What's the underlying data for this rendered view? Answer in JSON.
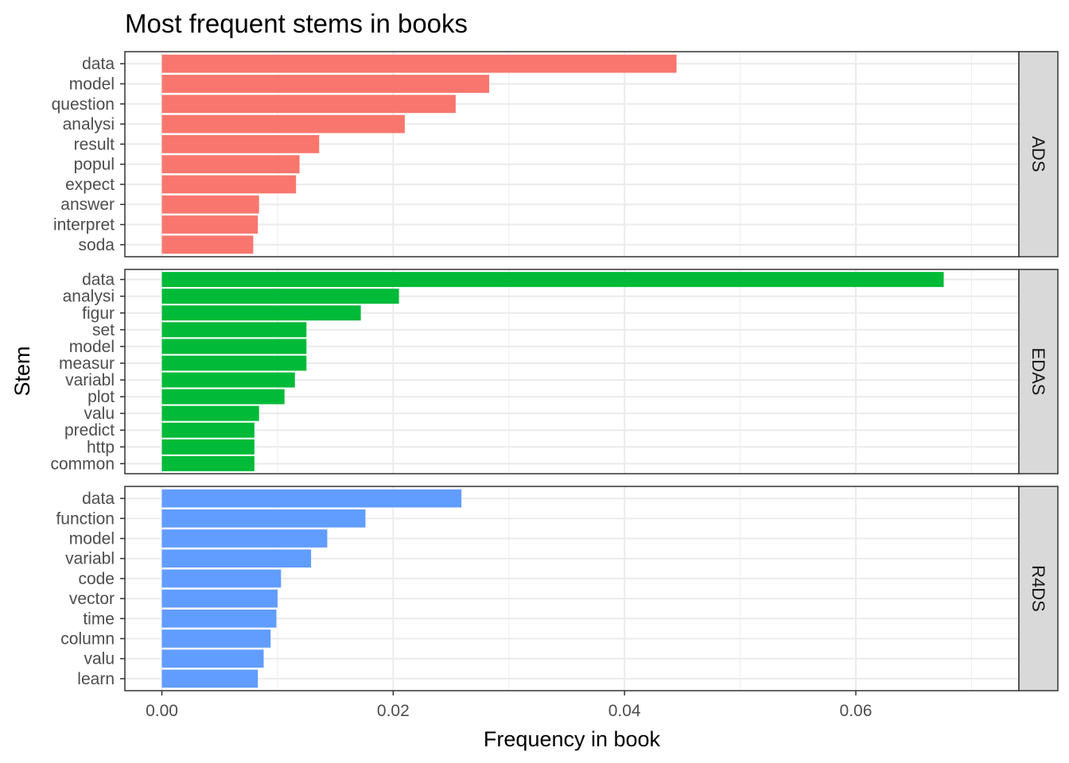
{
  "chart_data": {
    "type": "bar",
    "orientation": "horizontal",
    "title": "Most frequent stems in books",
    "xlabel": "Frequency in book",
    "ylabel": "Stem",
    "xlim": [
      -0.0032,
      0.0741
    ],
    "x_ticks": [
      0.0,
      0.02,
      0.04,
      0.06
    ],
    "x_tick_labels": [
      "0.00",
      "0.02",
      "0.04",
      "0.06"
    ],
    "grid": true,
    "legend": "none",
    "facet_position": "right",
    "facets": [
      {
        "name": "ADS",
        "color": "#F8766D",
        "categories": [
          "data",
          "model",
          "question",
          "analysi",
          "result",
          "popul",
          "expect",
          "answer",
          "interpret",
          "soda"
        ],
        "values": [
          0.0445,
          0.0283,
          0.0254,
          0.021,
          0.0136,
          0.0119,
          0.0116,
          0.0084,
          0.0083,
          0.0079
        ]
      },
      {
        "name": "EDAS",
        "color": "#00BA38",
        "categories": [
          "data",
          "analysi",
          "figur",
          "set",
          "model",
          "measur",
          "variabl",
          "plot",
          "valu",
          "predict",
          "http",
          "common"
        ],
        "values": [
          0.0676,
          0.0205,
          0.0172,
          0.0125,
          0.0125,
          0.0125,
          0.0115,
          0.0106,
          0.0084,
          0.008,
          0.008,
          0.008
        ]
      },
      {
        "name": "R4DS",
        "color": "#619CFF",
        "categories": [
          "data",
          "function",
          "model",
          "variabl",
          "code",
          "vector",
          "time",
          "column",
          "valu",
          "learn"
        ],
        "values": [
          0.0259,
          0.0176,
          0.0143,
          0.0129,
          0.0103,
          0.01,
          0.0099,
          0.0094,
          0.0088,
          0.0083
        ]
      }
    ]
  }
}
